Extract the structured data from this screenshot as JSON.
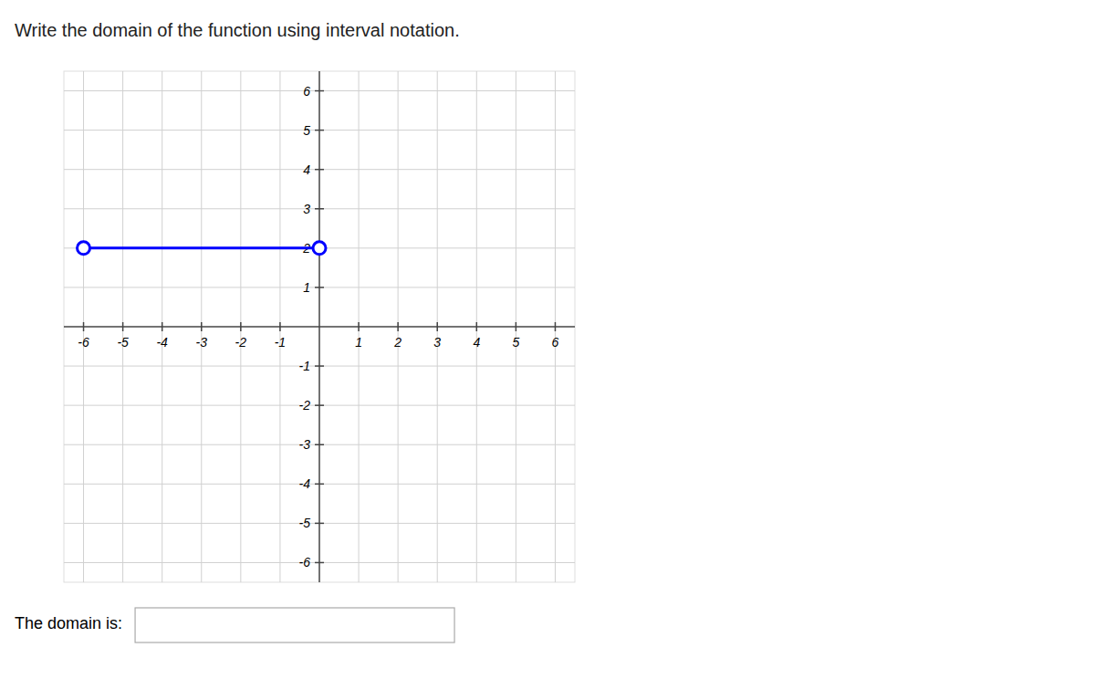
{
  "chart_data": {
    "type": "line",
    "title": "Write the domain of the function using interval notation.",
    "annotation": "The domain is:",
    "x": [
      -6,
      0
    ],
    "series": [
      {
        "color": "#0000FF",
        "marker": "open-circle",
        "line_style": "solid",
        "values": [
          2,
          2
        ]
      }
    ],
    "xlim": [
      -6.5,
      6.5
    ],
    "ylim": [
      -6.5,
      6.5
    ],
    "xticks": [
      -6,
      -5,
      -4,
      -3,
      -2,
      -1,
      1,
      2,
      3,
      4,
      5,
      6
    ],
    "yticks": [
      -6,
      -5,
      -4,
      -3,
      -2,
      -1,
      1,
      2,
      3,
      4,
      5,
      6
    ],
    "grid": true
  }
}
